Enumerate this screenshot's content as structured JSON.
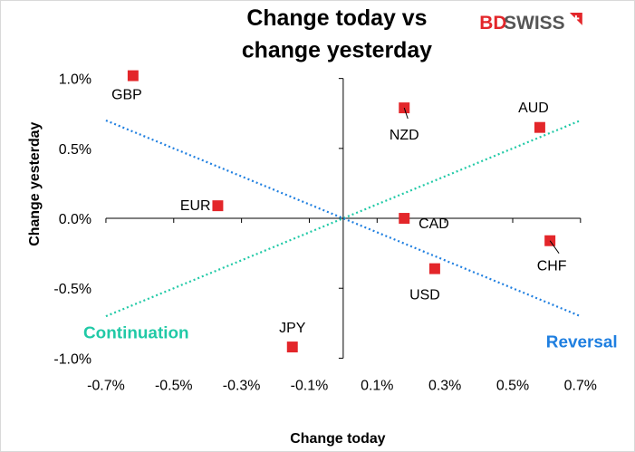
{
  "brand": {
    "logo_bd": "BD",
    "logo_swiss": "SWISS",
    "bd_color": "#e3262a",
    "swiss_color": "#555555"
  },
  "chart_data": {
    "type": "scatter",
    "title_lines": [
      "Change today vs",
      "change yesterday"
    ],
    "xlabel": "Change today",
    "ylabel": "Change yesterday",
    "xlim": [
      -0.7,
      0.7
    ],
    "ylim": [
      -1.0,
      1.0
    ],
    "x_ticks": [
      "-0.7%",
      "-0.5%",
      "-0.3%",
      "-0.1%",
      "0.1%",
      "0.3%",
      "0.5%",
      "0.7%"
    ],
    "x_tick_values": [
      -0.7,
      -0.5,
      -0.3,
      -0.1,
      0.1,
      0.3,
      0.5,
      0.7
    ],
    "y_ticks": [
      "1.0%",
      "0.5%",
      "0.0%",
      "-0.5%",
      "-1.0%"
    ],
    "y_tick_values": [
      1.0,
      0.5,
      0.0,
      -0.5,
      -1.0
    ],
    "marker_color": "#e3262a",
    "points": [
      {
        "label": "GBP",
        "x": -0.62,
        "y": 1.02
      },
      {
        "label": "NZD",
        "x": 0.18,
        "y": 0.79
      },
      {
        "label": "AUD",
        "x": 0.58,
        "y": 0.65
      },
      {
        "label": "EUR",
        "x": -0.37,
        "y": 0.09
      },
      {
        "label": "CAD",
        "x": 0.18,
        "y": 0.0
      },
      {
        "label": "CHF",
        "x": 0.61,
        "y": -0.16
      },
      {
        "label": "USD",
        "x": 0.27,
        "y": -0.36
      },
      {
        "label": "JPY",
        "x": -0.15,
        "y": -0.92
      }
    ],
    "lines": [
      {
        "name": "Continuation",
        "color": "#20c9a6",
        "from": [
          -0.7,
          -0.7
        ],
        "to": [
          0.7,
          0.7
        ]
      },
      {
        "name": "Reversal",
        "color": "#1f7fe0",
        "from": [
          -0.7,
          0.7
        ],
        "to": [
          0.7,
          -0.7
        ]
      }
    ],
    "annotations": [
      "Continuation",
      "Reversal"
    ],
    "grid": false
  }
}
